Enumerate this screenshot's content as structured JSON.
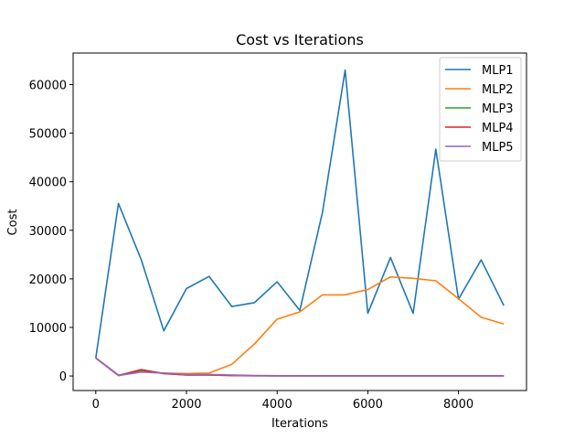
{
  "chart_data": {
    "type": "line",
    "title": "Cost vs Iterations",
    "xlabel": "Iterations",
    "ylabel": "Cost",
    "xlim": [
      -500,
      9500
    ],
    "ylim": [
      -3000,
      66500
    ],
    "xticks": [
      0,
      2000,
      4000,
      6000,
      8000
    ],
    "yticks": [
      0,
      10000,
      20000,
      30000,
      40000,
      50000,
      60000
    ],
    "legend_position": "top-right",
    "grid": false,
    "x": [
      0,
      500,
      1000,
      1500,
      2000,
      2500,
      3000,
      3500,
      4000,
      4500,
      5000,
      5500,
      6000,
      6500,
      7000,
      7500,
      8000,
      8500,
      9000
    ],
    "series": [
      {
        "name": "MLP1",
        "color": "#1f77b4",
        "values": [
          3700,
          35500,
          24000,
          9300,
          18000,
          20500,
          14300,
          15100,
          19400,
          13500,
          33700,
          63000,
          12900,
          24400,
          12900,
          46700,
          15800,
          23900,
          14500
        ]
      },
      {
        "name": "MLP2",
        "color": "#ff7f0e",
        "values": [
          3700,
          200,
          900,
          600,
          500,
          600,
          2400,
          6600,
          11700,
          13200,
          16700,
          16700,
          17800,
          20400,
          20100,
          19600,
          15900,
          12100,
          10700
        ]
      },
      {
        "name": "MLP3",
        "color": "#2ca02c",
        "values": [
          3700,
          100,
          1200,
          500,
          200,
          200,
          100,
          50,
          30,
          20,
          20,
          20,
          20,
          20,
          20,
          20,
          20,
          20,
          20
        ]
      },
      {
        "name": "MLP4",
        "color": "#d62728",
        "values": [
          3700,
          100,
          1300,
          500,
          200,
          200,
          100,
          50,
          30,
          20,
          20,
          20,
          20,
          20,
          20,
          20,
          20,
          20,
          20
        ]
      },
      {
        "name": "MLP5",
        "color": "#9467bd",
        "values": [
          3700,
          100,
          800,
          600,
          300,
          300,
          200,
          100,
          50,
          30,
          30,
          30,
          30,
          30,
          30,
          30,
          30,
          30,
          30
        ]
      }
    ]
  }
}
